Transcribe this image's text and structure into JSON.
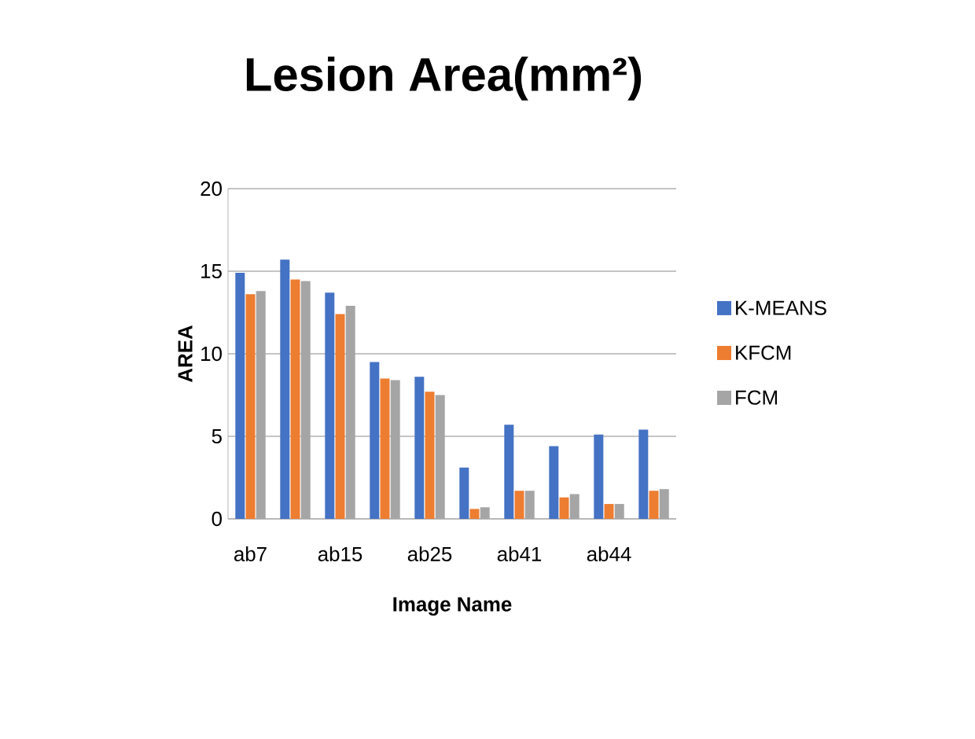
{
  "chart_data": {
    "type": "bar",
    "title": "Lesion Area(mm²)",
    "xlabel": "Image Name",
    "ylabel": "AREA",
    "categories": [
      "ab7",
      null,
      "ab15",
      null,
      "ab25",
      null,
      "ab41",
      null,
      "ab44",
      null
    ],
    "series": [
      {
        "name": "K-MEANS",
        "color": "#4472c4",
        "values": [
          14.9,
          15.7,
          13.7,
          9.5,
          8.6,
          3.1,
          5.7,
          4.4,
          5.1,
          5.4
        ]
      },
      {
        "name": "KFCM",
        "color": "#ed7d31",
        "values": [
          13.6,
          14.5,
          12.4,
          8.5,
          7.7,
          0.6,
          1.7,
          1.3,
          0.9,
          1.7
        ]
      },
      {
        "name": "FCM",
        "color": "#a5a5a5",
        "values": [
          13.8,
          14.4,
          12.9,
          8.4,
          7.5,
          0.7,
          1.7,
          1.5,
          0.9,
          1.8
        ]
      }
    ],
    "ylim": [
      0,
      20
    ],
    "yticks": [
      0,
      5,
      10,
      15,
      20
    ],
    "grid": "y",
    "legend": "right"
  }
}
